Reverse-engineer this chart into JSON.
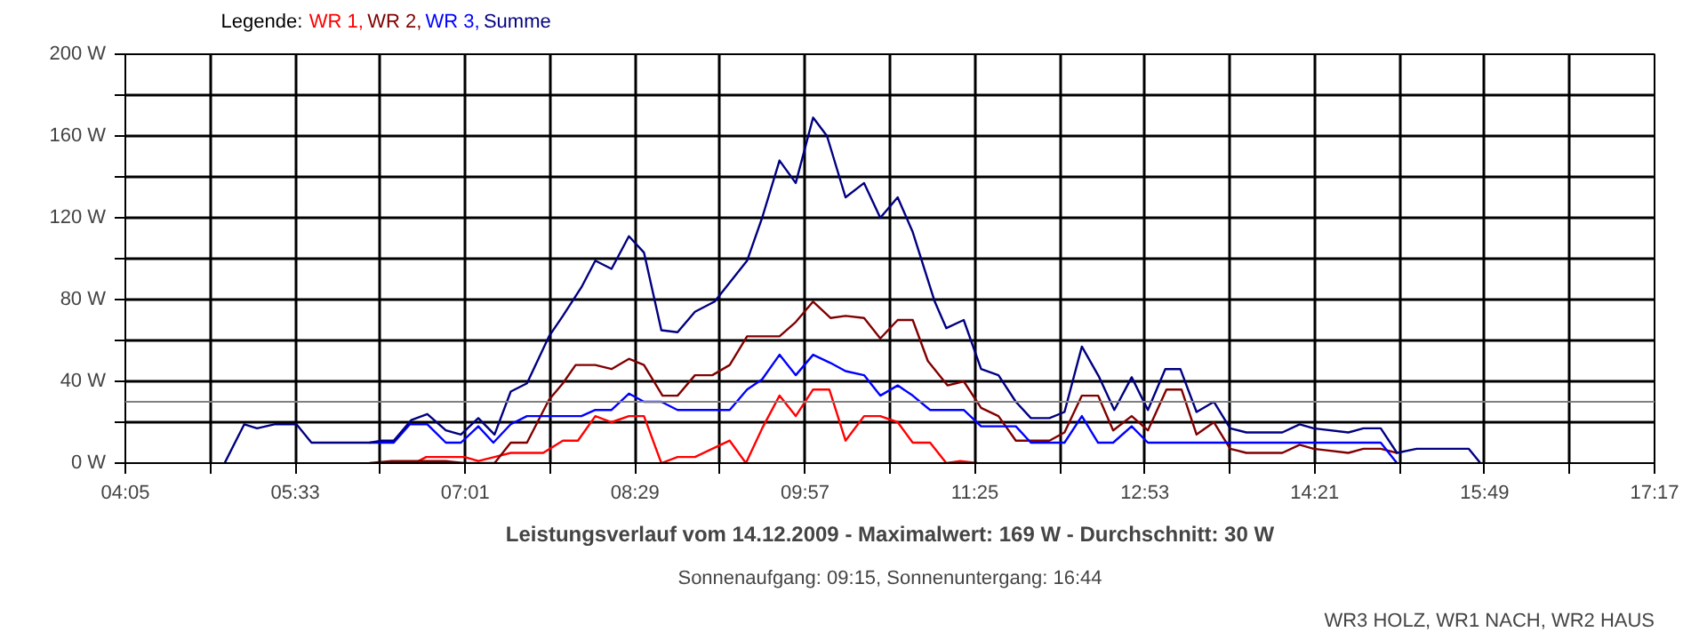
{
  "chart_data": {
    "type": "line",
    "title": "Leistungsverlauf vom 14.12.2009 - Maximalwert: 169 W - Durchschnitt: 30 W",
    "subtitle": "Sonnenaufgang: 09:15, Sonnenuntergang: 16:44",
    "legend_title": "Legende:",
    "annotations": [
      "WR3 HOLZ, WR1 NACH, WR2 HAUS"
    ],
    "xlim": [
      4.0833,
      17.2833
    ],
    "xticks": [
      {
        "value": 4.0833,
        "label": "04:05"
      },
      {
        "value": 4.8167,
        "label": null
      },
      {
        "value": 5.55,
        "label": "05:33"
      },
      {
        "value": 6.2833,
        "label": null
      },
      {
        "value": 7.0167,
        "label": "07:01"
      },
      {
        "value": 7.75,
        "label": null
      },
      {
        "value": 8.4833,
        "label": "08:29"
      },
      {
        "value": 9.2167,
        "label": null
      },
      {
        "value": 9.95,
        "label": "09:57"
      },
      {
        "value": 10.6833,
        "label": null
      },
      {
        "value": 11.4167,
        "label": "11:25"
      },
      {
        "value": 12.15,
        "label": null
      },
      {
        "value": 12.8833,
        "label": "12:53"
      },
      {
        "value": 13.6167,
        "label": null
      },
      {
        "value": 14.35,
        "label": "14:21"
      },
      {
        "value": 15.0833,
        "label": null
      },
      {
        "value": 15.8167,
        "label": "15:49"
      },
      {
        "value": 16.55,
        "label": null
      },
      {
        "value": 17.2833,
        "label": "17:17"
      }
    ],
    "ylim": [
      0,
      200
    ],
    "yticks": [
      {
        "value": 0,
        "label": "0 W"
      },
      {
        "value": 20,
        "label": null
      },
      {
        "value": 40,
        "label": "40 W"
      },
      {
        "value": 60,
        "label": null
      },
      {
        "value": 80,
        "label": "80 W"
      },
      {
        "value": 100,
        "label": null
      },
      {
        "value": 120,
        "label": "120 W"
      },
      {
        "value": 140,
        "label": null
      },
      {
        "value": 160,
        "label": "160 W"
      },
      {
        "value": 180,
        "label": null
      },
      {
        "value": 200,
        "label": "200 W"
      }
    ],
    "grid": true,
    "line_style": "solid",
    "ref_lines": [
      {
        "axis": "y",
        "value": 30,
        "label": null,
        "color": "#808080"
      }
    ],
    "series": [
      {
        "name": "WR 1,",
        "color": "#ff0000",
        "x": [
          6.58,
          6.68,
          7.01,
          7.13,
          7.27,
          7.41,
          7.69,
          7.86,
          7.99,
          8.14,
          8.28,
          8.43,
          8.56,
          8.71,
          8.85,
          9.0,
          9.15,
          9.3,
          9.44,
          9.58,
          9.73,
          9.87,
          10.02,
          10.16,
          10.3,
          10.46,
          10.6,
          10.75,
          10.88,
          11.03,
          11.17,
          11.29,
          11.44
        ],
        "values": [
          0,
          3,
          3,
          1,
          3,
          5,
          5,
          11,
          11,
          23,
          20,
          23,
          23,
          0,
          3,
          3,
          7,
          11,
          0,
          17,
          33,
          23,
          36,
          36,
          11,
          23,
          23,
          20,
          10,
          10,
          0,
          1,
          0
        ]
      },
      {
        "name": "WR 2,",
        "color": "#800000",
        "x": [
          6.19,
          6.38,
          6.58,
          6.85,
          7.01,
          7.27,
          7.41,
          7.55,
          7.74,
          7.86,
          7.97,
          8.14,
          8.28,
          8.43,
          8.56,
          8.72,
          8.85,
          9.0,
          9.15,
          9.3,
          9.45,
          9.73,
          9.87,
          10.02,
          10.17,
          10.3,
          10.46,
          10.6,
          10.75,
          10.88,
          11.01,
          11.18,
          11.32,
          11.47,
          11.62,
          11.77,
          12.06,
          12.19,
          12.34,
          12.48,
          12.61,
          12.77,
          12.91,
          13.07,
          13.2,
          13.33,
          13.48,
          13.62,
          13.76,
          14.07,
          14.22,
          14.34,
          14.64,
          14.77,
          14.92,
          15.06
        ],
        "values": [
          0,
          1,
          1,
          1,
          0,
          0,
          10,
          10,
          31,
          39,
          48,
          48,
          46,
          51,
          48,
          33,
          33,
          43,
          43,
          48,
          62,
          62,
          69,
          79,
          71,
          72,
          71,
          61,
          70,
          70,
          50,
          38,
          40,
          27,
          23,
          11,
          11,
          15,
          33,
          33,
          16,
          23,
          16,
          36,
          36,
          14,
          20,
          7,
          5,
          5,
          9,
          7,
          5,
          7,
          7,
          5
        ]
      },
      {
        "name": "WR 3,",
        "color": "#0000ff",
        "x": [
          6.19,
          6.4,
          6.54,
          6.69,
          6.85,
          6.98,
          7.13,
          7.26,
          7.41,
          7.55,
          8.02,
          8.14,
          8.28,
          8.43,
          8.56,
          8.71,
          8.85,
          9.3,
          9.45,
          9.58,
          9.73,
          9.87,
          10.02,
          10.17,
          10.3,
          10.46,
          10.6,
          10.75,
          10.88,
          11.03,
          11.32,
          11.47,
          11.77,
          11.9,
          12.19,
          12.34,
          12.48,
          12.61,
          12.77,
          12.91,
          14.92,
          15.06
        ],
        "values": [
          10,
          10,
          19,
          19,
          10,
          10,
          18,
          10,
          19,
          23,
          23,
          26,
          26,
          34,
          30,
          30,
          26,
          26,
          36,
          41,
          53,
          43,
          53,
          49,
          45,
          43,
          33,
          38,
          33,
          26,
          26,
          18,
          18,
          10,
          10,
          23,
          10,
          10,
          18,
          10,
          10,
          0
        ]
      },
      {
        "name": "Summe",
        "color": "#000080",
        "x": [
          4.94,
          5.11,
          5.22,
          5.37,
          5.56,
          5.69,
          6.19,
          6.3,
          6.4,
          6.55,
          6.69,
          6.85,
          6.98,
          7.13,
          7.27,
          7.41,
          7.55,
          7.74,
          7.86,
          8.02,
          8.14,
          8.28,
          8.43,
          8.56,
          8.71,
          8.85,
          9.0,
          9.17,
          9.45,
          9.58,
          9.73,
          9.87,
          10.02,
          10.14,
          10.3,
          10.46,
          10.6,
          10.75,
          10.88,
          11.07,
          11.17,
          11.32,
          11.47,
          11.62,
          11.77,
          11.9,
          12.06,
          12.19,
          12.34,
          12.49,
          12.62,
          12.77,
          12.91,
          13.06,
          13.19,
          13.33,
          13.48,
          13.62,
          13.76,
          14.07,
          14.22,
          14.34,
          14.64,
          14.77,
          14.92,
          15.06,
          15.23,
          15.68,
          15.78
        ],
        "values": [
          0,
          19,
          17,
          19,
          19,
          10,
          10,
          11,
          11,
          21,
          24,
          16,
          14,
          22,
          14,
          35,
          39,
          62,
          72,
          86,
          99,
          95,
          111,
          103,
          65,
          64,
          74,
          79,
          99,
          120,
          148,
          137,
          169,
          160,
          130,
          137,
          120,
          130,
          113,
          79,
          66,
          70,
          46,
          43,
          30,
          22,
          22,
          25,
          57,
          42,
          26,
          42,
          26,
          46,
          46,
          25,
          30,
          17,
          15,
          15,
          19,
          17,
          15,
          17,
          17,
          5,
          7,
          7,
          0
        ]
      }
    ]
  }
}
